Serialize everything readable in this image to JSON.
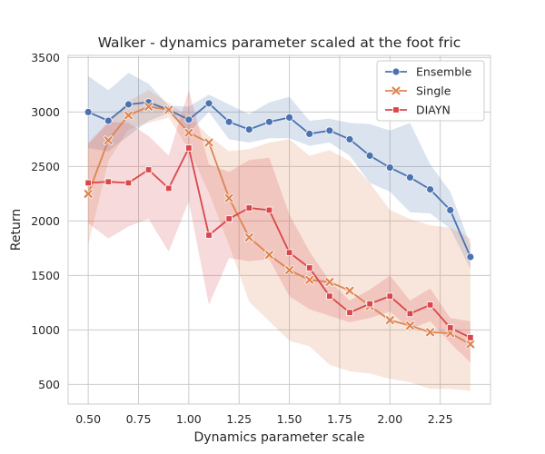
{
  "chart_data": {
    "type": "line",
    "title": "Walker - dynamics parameter scaled at the foot fric",
    "xlabel": "Dynamics parameter scale",
    "ylabel": "Return",
    "xlim": [
      0.4,
      2.5
    ],
    "ylim": [
      320,
      3520
    ],
    "xticks": [
      0.5,
      0.75,
      1.0,
      1.25,
      1.5,
      1.75,
      2.0,
      2.25
    ],
    "xtick_labels": [
      "0.50",
      "0.75",
      "1.00",
      "1.25",
      "1.50",
      "1.75",
      "2.00",
      "2.25"
    ],
    "yticks": [
      500,
      1000,
      1500,
      2000,
      2500,
      3000,
      3500
    ],
    "ytick_labels": [
      "500",
      "1000",
      "1500",
      "2000",
      "2500",
      "3000",
      "3500"
    ],
    "grid": true,
    "legend_position": "top-right",
    "x": [
      0.5,
      0.6,
      0.7,
      0.8,
      0.9,
      1.0,
      1.1,
      1.2,
      1.3,
      1.4,
      1.5,
      1.6,
      1.7,
      1.8,
      1.9,
      2.0,
      2.1,
      2.2,
      2.3,
      2.4
    ],
    "series": [
      {
        "name": "Ensemble",
        "color": "#4c72b0",
        "marker": "circle",
        "values": [
          3000,
          2920,
          3070,
          3090,
          3020,
          2930,
          3080,
          2910,
          2840,
          2910,
          2950,
          2800,
          2830,
          2750,
          2600,
          2490,
          2400,
          2290,
          2100,
          1670
        ],
        "upper": [
          3330,
          3200,
          3360,
          3260,
          3060,
          3050,
          3160,
          3070,
          2980,
          3090,
          3140,
          2920,
          2940,
          2900,
          2890,
          2830,
          2900,
          2520,
          2270,
          1780
        ],
        "lower": [
          2670,
          2640,
          2780,
          2920,
          2990,
          2810,
          3000,
          2750,
          2720,
          2760,
          2760,
          2690,
          2720,
          2600,
          2350,
          2270,
          2080,
          2070,
          1930,
          1560
        ]
      },
      {
        "name": "Single",
        "color": "#dd8452",
        "marker": "x",
        "values": [
          2250,
          2740,
          2970,
          3050,
          3020,
          2810,
          2720,
          2210,
          1850,
          1690,
          1550,
          1460,
          1440,
          1360,
          1220,
          1090,
          1040,
          980,
          970,
          870
        ],
        "upper": [
          2700,
          2900,
          3100,
          3200,
          3080,
          2960,
          2780,
          2640,
          2660,
          2720,
          2750,
          2600,
          2650,
          2550,
          2350,
          2100,
          2020,
          1960,
          1940,
          1840
        ],
        "lower": [
          1780,
          2550,
          2840,
          2900,
          2950,
          2660,
          2260,
          1780,
          1260,
          1080,
          900,
          850,
          680,
          620,
          600,
          550,
          520,
          460,
          460,
          440
        ]
      },
      {
        "name": "DIAYN",
        "color": "#d9474b",
        "marker": "square",
        "values": [
          2350,
          2360,
          2350,
          2470,
          2300,
          2670,
          1870,
          2020,
          2120,
          2100,
          1710,
          1570,
          1310,
          1160,
          1240,
          1310,
          1150,
          1230,
          1020,
          930
        ],
        "upper": [
          2720,
          2910,
          2900,
          2780,
          2600,
          3200,
          2520,
          2450,
          2560,
          2580,
          2060,
          1720,
          1450,
          1270,
          1370,
          1500,
          1270,
          1380,
          1110,
          1080
        ],
        "lower": [
          1980,
          1840,
          1950,
          2020,
          1720,
          2180,
          1230,
          1660,
          1630,
          1650,
          1310,
          1190,
          1130,
          1070,
          1110,
          1170,
          1010,
          1080,
          880,
          700
        ]
      }
    ]
  }
}
